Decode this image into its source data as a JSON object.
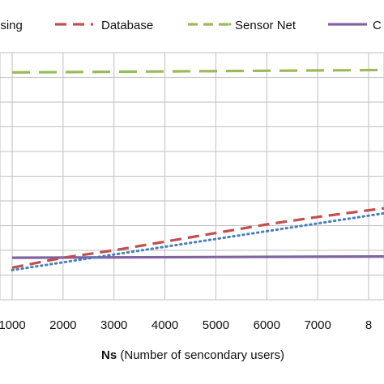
{
  "chart_data": {
    "type": "line",
    "xlabel_bold": "Ns",
    "xlabel_rest": "(Number of sencondary users)",
    "x_ticks": [
      "1000",
      "2000",
      "3000",
      "4000",
      "5000",
      "6000",
      "7000",
      "8"
    ],
    "xlim": [
      800,
      8300
    ],
    "ylim": [
      0,
      100
    ],
    "grid": true,
    "legend_placement": "top",
    "series": [
      {
        "name": "nsing",
        "color": "#4a7ebb",
        "style": "dotted",
        "x": [
          1000,
          8300
        ],
        "y": [
          12,
          35
        ]
      },
      {
        "name": "Database",
        "color": "#c0504d",
        "style": "dashed",
        "x": [
          1000,
          2000,
          3000,
          4000,
          5000,
          6000,
          7000,
          8300
        ],
        "y": [
          13,
          17,
          20,
          23.5,
          27,
          30.5,
          33.5,
          37
        ]
      },
      {
        "name": "Sensor Net",
        "color": "#9bbb59",
        "style": "long-dashed",
        "x": [
          1000,
          8300
        ],
        "y": [
          92,
          93
        ]
      },
      {
        "name": "C",
        "color": "#8064a2",
        "style": "solid",
        "x": [
          1000,
          8300
        ],
        "y": [
          17,
          17.5
        ]
      }
    ]
  }
}
